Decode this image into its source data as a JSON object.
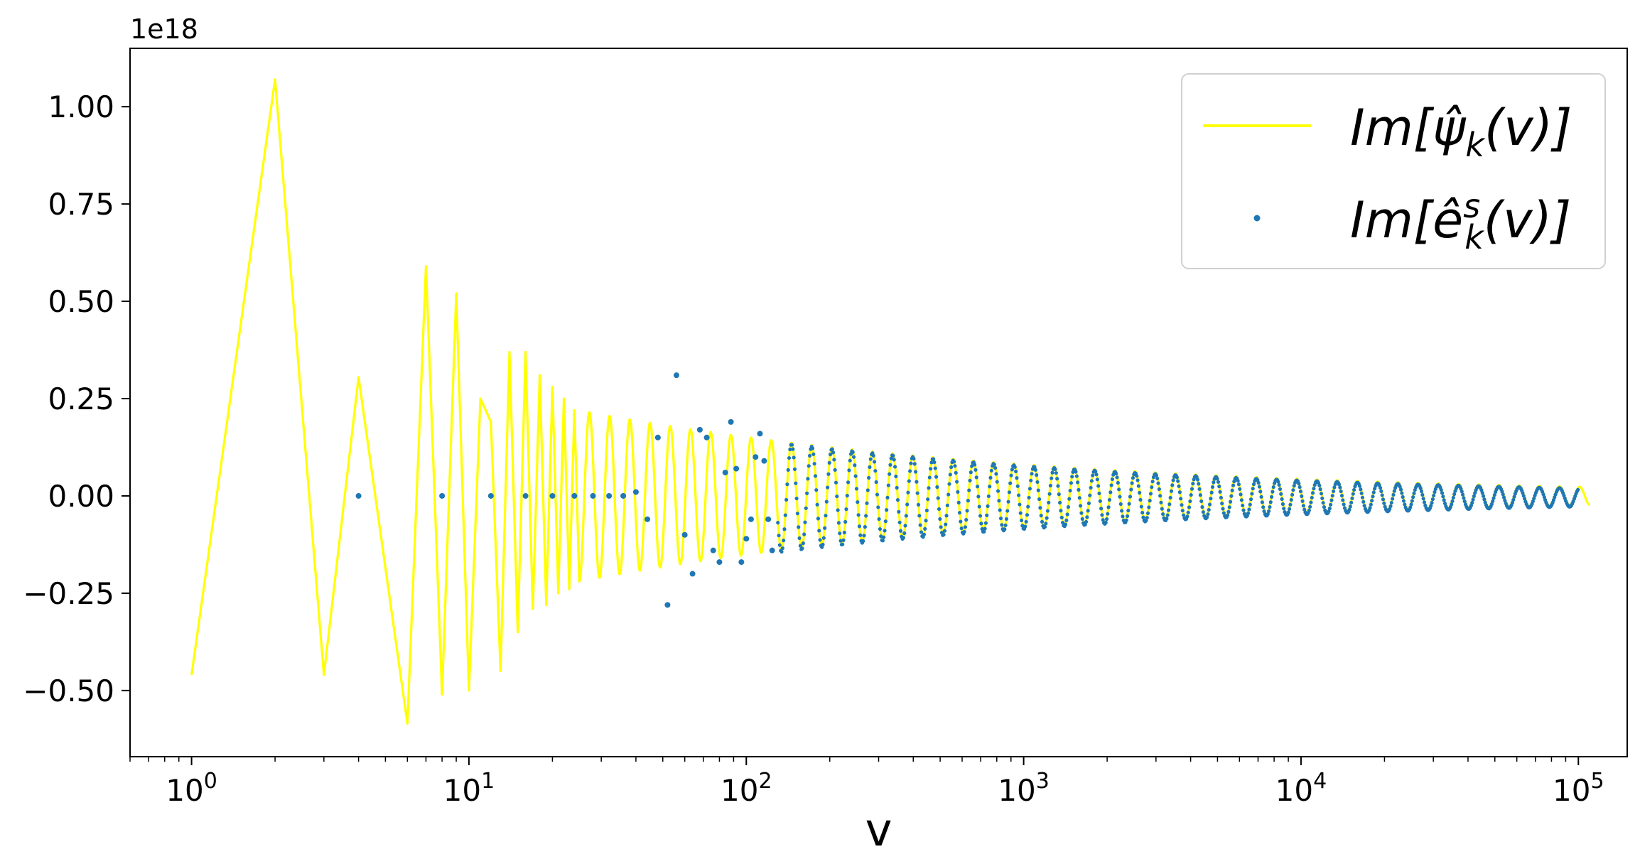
{
  "chart_data": {
    "type": "line",
    "x_scale": "log",
    "xlabel": "v",
    "ylabel": "",
    "y_offset_label": "1e18",
    "xlim": [
      0.6,
      150000
    ],
    "ylim": [
      -0.67,
      1.15
    ],
    "x_tick_labels": [
      {
        "base": "10",
        "exp": "0",
        "value": 1
      },
      {
        "base": "10",
        "exp": "1",
        "value": 10
      },
      {
        "base": "10",
        "exp": "2",
        "value": 100
      },
      {
        "base": "10",
        "exp": "3",
        "value": 1000
      },
      {
        "base": "10",
        "exp": "4",
        "value": 10000
      },
      {
        "base": "10",
        "exp": "5",
        "value": 100000
      }
    ],
    "y_ticks": [
      -0.5,
      -0.25,
      0.0,
      0.25,
      0.5,
      0.75,
      1.0
    ],
    "y_tick_labels": [
      "−0.50",
      "−0.25",
      "0.00",
      "0.25",
      "0.50",
      "0.75",
      "1.00"
    ],
    "grid": false,
    "legend_position": "top-right",
    "colors": {
      "line": "#ffff00",
      "dots": "#1f77b4",
      "axes": "#000000"
    },
    "series": [
      {
        "name": "Im[ψ̂k(v)]",
        "legend_main": "Im[",
        "legend_symbol": "ψ̂",
        "legend_sub": "k",
        "legend_sup": "",
        "legend_tail": "(v)]",
        "kind": "line",
        "points": [
          [
            1,
            -0.46
          ],
          [
            2,
            1.07
          ],
          [
            3,
            -0.46
          ],
          [
            4,
            0.305
          ],
          [
            6,
            -0.585
          ],
          [
            7,
            0.59
          ],
          [
            8,
            -0.51
          ],
          [
            9,
            0.52
          ],
          [
            10,
            -0.5
          ],
          [
            11,
            0.25
          ],
          [
            12,
            0.19
          ],
          [
            13,
            -0.45
          ],
          [
            14,
            0.37
          ],
          [
            15,
            -0.35
          ],
          [
            16,
            0.37
          ],
          [
            17,
            -0.29
          ],
          [
            18,
            0.31
          ],
          [
            19,
            -0.28
          ],
          [
            20,
            0.28
          ],
          [
            21,
            -0.25
          ],
          [
            22,
            0.25
          ],
          [
            23,
            -0.24
          ],
          [
            24,
            0.22
          ],
          [
            25,
            -0.22
          ]
        ],
        "tail_model": {
          "description": "decaying sinusoid from v=25 to v=110000",
          "v_start": 25,
          "v_end": 110000
        }
      },
      {
        "name": "Im[êˢk(v)]",
        "legend_main": "Im[",
        "legend_symbol": "ê",
        "legend_sub": "k",
        "legend_sup": "s",
        "legend_tail": "(v)]",
        "kind": "scatter",
        "points": [
          [
            4,
            0.0
          ],
          [
            8,
            0.0
          ],
          [
            12,
            0.0
          ],
          [
            16,
            0.0
          ],
          [
            20,
            0.0
          ],
          [
            24,
            0.0
          ],
          [
            28,
            0.0
          ],
          [
            32,
            0.0
          ],
          [
            36,
            0.0
          ],
          [
            40,
            0.01
          ],
          [
            44,
            -0.06
          ],
          [
            48,
            0.15
          ],
          [
            52,
            -0.28
          ],
          [
            56,
            0.31
          ],
          [
            60,
            -0.1
          ],
          [
            64,
            -0.2
          ],
          [
            68,
            0.17
          ],
          [
            72,
            0.15
          ],
          [
            76,
            -0.14
          ],
          [
            80,
            -0.17
          ],
          [
            84,
            0.06
          ],
          [
            88,
            0.19
          ],
          [
            92,
            0.07
          ],
          [
            96,
            -0.17
          ],
          [
            100,
            -0.11
          ],
          [
            104,
            -0.06
          ],
          [
            108,
            0.1
          ],
          [
            112,
            0.16
          ],
          [
            116,
            0.09
          ],
          [
            120,
            -0.06
          ],
          [
            124,
            -0.14
          ]
        ]
      }
    ]
  }
}
